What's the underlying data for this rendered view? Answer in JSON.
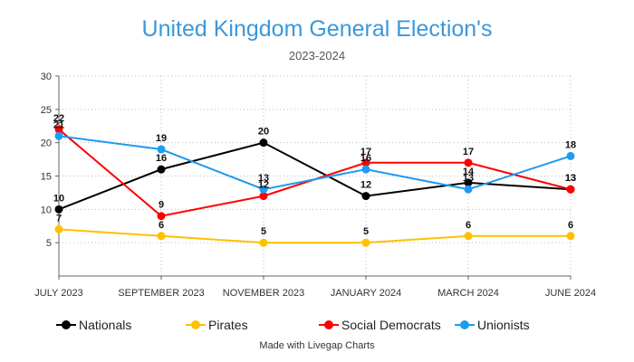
{
  "chart_data": {
    "type": "line",
    "title": "United Kingdom General Election's",
    "subtitle": "2023-2024",
    "categories": [
      "JULY 2023",
      "SEPTEMBER 2023",
      "NOVEMBER 2023",
      "JANUARY 2024",
      "MARCH 2024",
      "JUNE 2024"
    ],
    "ylim": [
      0,
      30
    ],
    "yticks": [
      5,
      10,
      15,
      20,
      25,
      30
    ],
    "grid": true,
    "legend_position": "bottom",
    "series": [
      {
        "name": "Nationals",
        "color": "#000000",
        "values": [
          10,
          16,
          20,
          12,
          14,
          13
        ]
      },
      {
        "name": "Pirates",
        "color": "#ffc000",
        "values": [
          7,
          6,
          5,
          5,
          6,
          6
        ]
      },
      {
        "name": "Social Democrats",
        "color": "#ff0000",
        "values": [
          22,
          9,
          12,
          17,
          17,
          13
        ]
      },
      {
        "name": "Unionists",
        "color": "#1e9bf0",
        "values": [
          21,
          19,
          13,
          16,
          13,
          18
        ]
      }
    ]
  },
  "footer": {
    "credit": "Made with Livegap Charts"
  }
}
